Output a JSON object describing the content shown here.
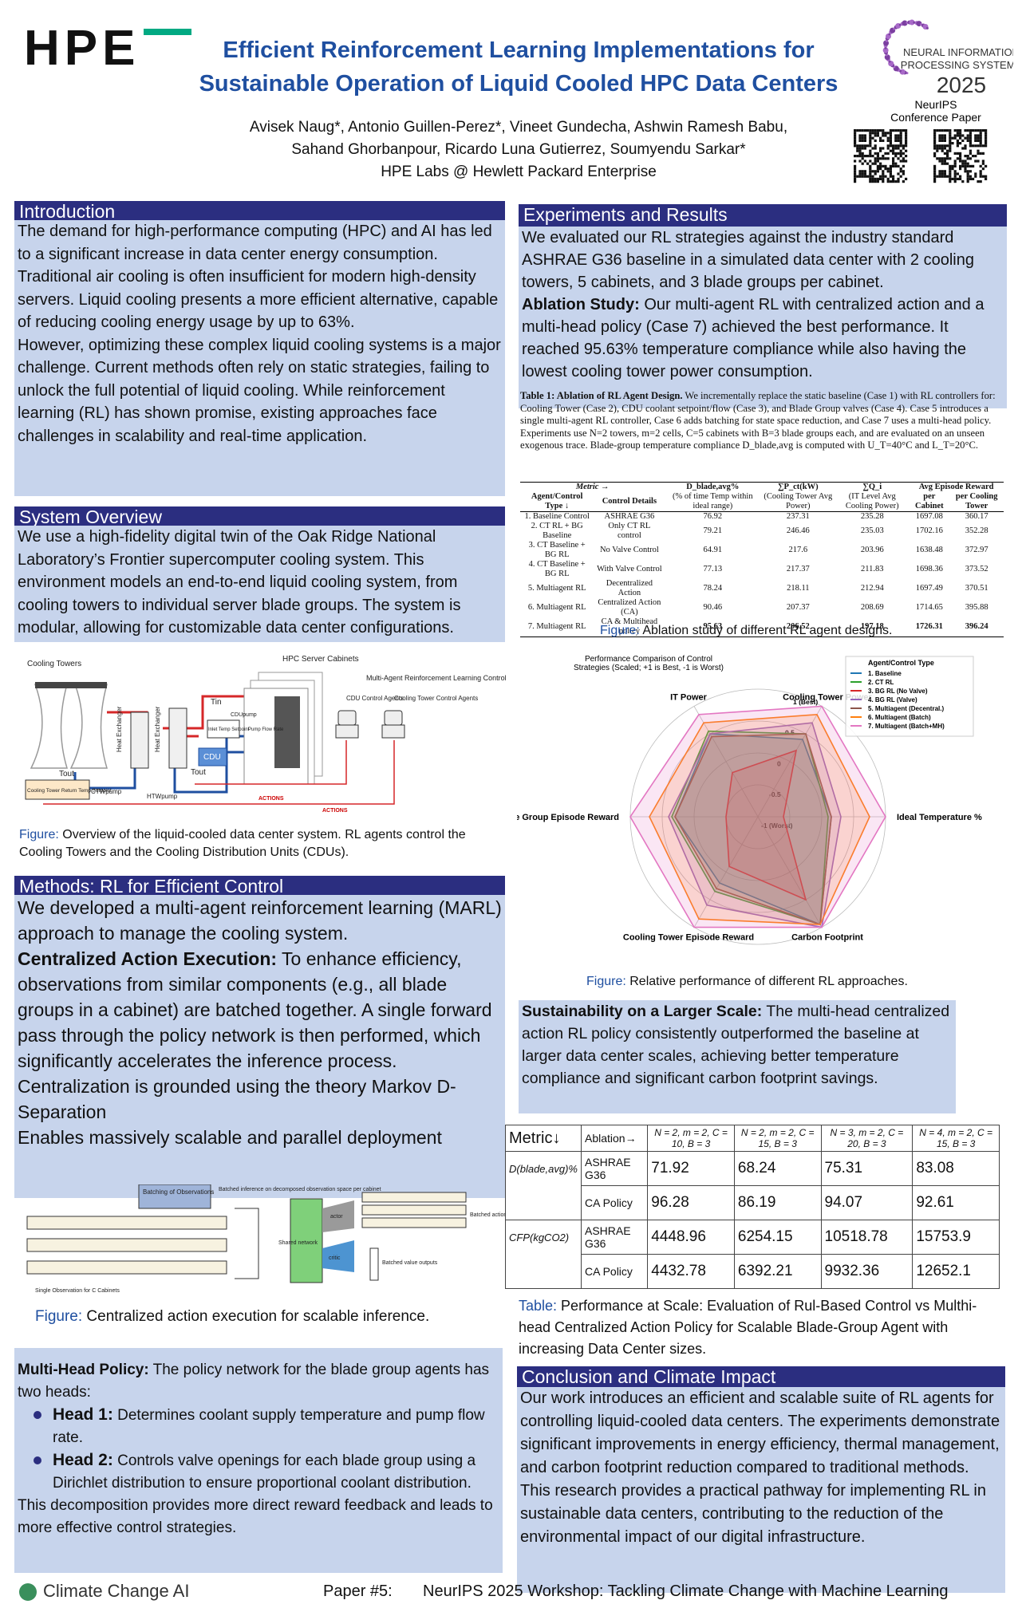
{
  "header": {
    "logo": "HPE",
    "title_lines": [
      "Efficient Reinforcement Learning Implementations for",
      "Sustainable Operation of Liquid Cooled HPC Data Centers"
    ],
    "author_lines": [
      "Avisek Naug*, Antonio Guillen-Perez*, Vineet Gundecha, Ashwin Ramesh Babu,",
      "Sahand Ghorbanpour, Ricardo Luna Gutierrez, Soumyendu Sarkar*",
      "HPE Labs @ Hewlett Packard Enterprise"
    ],
    "conference_logo": [
      "NEURAL INFORMATION",
      "PROCESSING SYSTEMS",
      "2025"
    ],
    "qr_label": [
      "NeurIPS",
      "Conference Paper"
    ]
  },
  "introduction": {
    "heading": "Introduction",
    "paragraphs": [
      "The demand for high-performance computing (HPC) and AI has led to a significant increase in data center energy consumption. Traditional air cooling is often insufficient for modern high-density servers. Liquid cooling presents a more efficient alternative, capable of reducing cooling energy usage by up to 63%.",
      "However, optimizing these complex liquid cooling systems is a major challenge. Current methods often rely on static strategies, failing to unlock the full potential of liquid cooling. While reinforcement learning (RL) has shown promise, existing approaches face challenges in scalability and real-time application."
    ]
  },
  "system_overview": {
    "heading": "System Overview",
    "paragraphs": [
      "We use a high-fidelity digital twin of the Oak Ridge National Laboratory’s Frontier supercomputer cooling system. This environment models an end-to-end liquid cooling system, from cooling towers to individual server blade groups. The system is modular, allowing for customizable data center configurations."
    ],
    "figure_labels": [
      "Cooling Towers",
      "HPC Server Cabinets",
      "Multi-Agent Reinforcement Learning Control",
      "CDU Control Agents",
      "Cooling Tower Control Agents",
      "Heat Exchanger",
      "Heat Exchanger",
      "CDU",
      "Inlet Temp Setpoint",
      "Pump Flow Rate",
      "Cooling Tower Return Temp Setpoint",
      "ACTIONS",
      "ACTIONS",
      "Tout",
      "Tin",
      "Tout",
      "CTWpump",
      "HTWpump",
      "CDUpump"
    ],
    "caption": {
      "label": "Figure:",
      "text": " Overview of the liquid-cooled data center system. RL agents control the Cooling Towers and the Cooling Distribution Units (CDUs)."
    }
  },
  "methods": {
    "heading": "Methods: RL for Efficient Control",
    "paragraphs": [
      "We developed a multi-agent reinforcement learning (MARL) approach to manage the cooling system.",
      {
        "lead": "Centralized Action Execution:",
        "text": " To enhance efficiency, observations from similar components (e.g., all blade groups in a cabinet) are batched together. A single forward pass through the policy network is then performed, which significantly accelerates the inference process."
      },
      "Centralization is grounded using the theory Markov D-Separation",
      "Enables massively scalable and parallel deployment"
    ],
    "figure_labels": [
      "Batching of Observations",
      "Batched inference on decomposed observation space per cabinet",
      "Shared network",
      "actor",
      "critic",
      "Batched action outputs",
      "Batched value outputs",
      "Single Observation for C Cabinets"
    ],
    "caption": {
      "label": "Figure:",
      "text": " Centralized action execution for scalable inference."
    }
  },
  "multi_head": {
    "intro": {
      "lead": "Multi-Head Policy:",
      "text": " The policy network for the blade group agents has two heads:"
    },
    "bullets": [
      {
        "lead": "Head 1:",
        "text": " Determines coolant supply temperature and pump flow rate."
      },
      {
        "lead": "Head 2:",
        "text": " Controls valve openings for each blade group using a Dirichlet distribution to ensure proportional coolant distribution."
      }
    ],
    "closing": "This decomposition provides more direct reward feedback and leads to more effective control strategies."
  },
  "experiments": {
    "heading": "Experiments and Results",
    "paragraphs": [
      "We evaluated our RL strategies against the industry standard ASHRAE G36 baseline in a simulated data center with 2 cooling towers, 5 cabinets, and 3 blade groups per cabinet.",
      {
        "lead": "Ablation Study:",
        "text": " Our multi-agent RL with centralized action and a multi-head policy (Case 7) achieved the best performance. It reached 95.63% temperature compliance while also having the lowest cooling tower power consumption."
      }
    ]
  },
  "ablation_table": {
    "caption": {
      "lead": "Table 1: Ablation of RL Agent Design.",
      "text": " We incrementally replace the static baseline (Case 1) with RL controllers for: Cooling Tower (Case 2), CDU coolant setpoint/flow (Case 3), and Blade Group valves (Case 4). Case 5 introduces a single multi-agent RL controller, Case 6 adds batching for state space reduction, and Case 7 uses a multi-head policy. Experiments use N=2 towers, m=2 cells, C=5 cabinets with B=3 blade groups each, and are evaluated on an unseen exogenous trace. Blade-group temperature compliance D_blade,avg is computed with U_T=40°C and L_T=20°C."
    },
    "header_top": [
      "Metric →",
      "D_blade,avg%",
      "∑P_ct(kW)",
      "∑Q_i",
      "Avg Episode Reward"
    ],
    "header_bottom": [
      "Agent/Control Type ↓",
      "Control Details",
      "(% of time Temp within ideal range)",
      "(Cooling Tower Avg Power)",
      "(IT Level Avg Cooling Power)",
      "per Cabinet",
      "per Cooling Tower"
    ],
    "rows": [
      [
        "1. Baseline Control",
        "ASHRAE G36",
        "76.92",
        "237.31",
        "235.28",
        "1697.08",
        "360.17"
      ],
      [
        "2. CT RL + BG Baseline",
        "Only CT RL control",
        "79.21",
        "246.46",
        "235.03",
        "1702.16",
        "352.28"
      ],
      [
        "3. CT Baseline + BG RL",
        "No Valve Control",
        "64.91",
        "217.6",
        "203.96",
        "1638.48",
        "372.97"
      ],
      [
        "4. CT Baseline + BG RL",
        "With Valve Control",
        "77.13",
        "217.37",
        "211.83",
        "1698.36",
        "373.52"
      ],
      [
        "5. Multiagent RL",
        "Decentralized Action",
        "78.24",
        "218.11",
        "212.94",
        "1697.49",
        "370.51"
      ],
      [
        "6. Multiagent RL",
        "Centralized Action (CA)",
        "90.46",
        "207.37",
        "208.69",
        "1714.65",
        "395.88"
      ],
      [
        "7. Multiagent RL",
        "CA & Multihead policy",
        "95.63",
        "206.52",
        "197.18",
        "1726.31",
        "396.24"
      ]
    ],
    "figure_caption": {
      "label": "Figure:",
      "text": " Ablation study of different RL agent designs."
    }
  },
  "chart_data": {
    "type": "radar",
    "title": [
      "Performance Comparison of Control",
      "Strategies (Scaled; +1 is Best, -1 is Worst)"
    ],
    "categories": [
      "IT Power",
      "Cooling Tower Power",
      "Ideal Temperature %",
      "Carbon Footprint",
      "Cooling Tower Episode Reward",
      "Blade Group Episode Reward"
    ],
    "ylim": [
      -1,
      1
    ],
    "yticks": [
      {
        "value": -1,
        "label": "-1 (Worst)"
      },
      -0.5,
      0,
      0.5,
      {
        "value": 1,
        "label": "1 (Best)"
      }
    ],
    "legend_title": "Agent/Control Type",
    "series": [
      {
        "name": "1. Baseline",
        "color": "#1f77b4",
        "values": [
          0.5,
          0.4,
          0.15,
          0.95,
          0.2,
          0.3
        ]
      },
      {
        "name": "2. CT RL",
        "color": "#2ca02c",
        "values": [
          0.55,
          0.5,
          0.1,
          0.95,
          0.35,
          0.35
        ]
      },
      {
        "name": "3. BG RL (No Valve)",
        "color": "#d62728",
        "values": [
          -0.2,
          0.2,
          -0.6,
          0.5,
          -0.1,
          -0.5
        ]
      },
      {
        "name": "4. BG RL (Valve)",
        "color": "#9467bd",
        "values": [
          0.5,
          0.7,
          0.3,
          1,
          0.6,
          0.4
        ]
      },
      {
        "name": "5. Multiagent (Decentral.)",
        "color": "#8c564b",
        "values": [
          0.45,
          0.5,
          0.15,
          0.95,
          0.3,
          0.3
        ]
      },
      {
        "name": "6. Multiagent (Batch)",
        "color": "#ff7f0e",
        "values": [
          0.7,
          0.85,
          0.75,
          0.95,
          0.85,
          0.7
        ]
      },
      {
        "name": "7. Multiagent (Batch+MH)",
        "color": "#e377c2",
        "values": [
          0.85,
          1,
          1,
          1,
          1,
          1
        ]
      }
    ],
    "caption": {
      "label": "Figure:",
      "text": " Relative performance of different RL approaches."
    }
  },
  "sustainability": {
    "lead": "Sustainability on a Larger Scale:",
    "text": " The multi-head centralized action RL policy consistently outperformed the baseline at larger data center scales, achieving better temperature compliance and significant carbon footprint savings."
  },
  "scale_table": {
    "header": [
      "Metric↓",
      "Ablation→",
      "N = 2, m = 2, C = 10, B = 3",
      "N = 2, m = 2, C = 15, B = 3",
      "N = 3, m = 2, C = 20, B = 3",
      "N = 4, m = 2, C = 15, B = 3"
    ],
    "groups": [
      {
        "metric": "D(blade,avg)%",
        "rows": [
          [
            "ASHRAE G36",
            "71.92",
            "68.24",
            "75.31",
            "83.08"
          ],
          [
            "CA Policy",
            "96.28",
            "86.19",
            "94.07",
            "92.61"
          ]
        ]
      },
      {
        "metric": "CFP(kgCO2)",
        "rows": [
          [
            "ASHRAE G36",
            "4448.96",
            "6254.15",
            "10518.78",
            "15753.9"
          ],
          [
            "CA Policy",
            "4432.78",
            "6392.21",
            "9932.36",
            "12652.1"
          ]
        ]
      }
    ],
    "caption": {
      "label": "Table:",
      "text": " Performance at Scale: Evaluation of Rul-Based Control vs Multhi-head Centralized Action Policy for Scalable Blade-Group Agent with increasing Data Center sizes."
    }
  },
  "conclusion": {
    "heading": "Conclusion and Climate Impact",
    "paragraphs": [
      "Our work introduces an efficient and scalable suite of RL agents for controlling liquid-cooled data centers. The experiments demonstrate significant improvements in energy efficiency, thermal management, and carbon footprint reduction compared to traditional methods.",
      "This research provides a practical pathway for implementing RL in sustainable data centers, contributing to the reduction of the environmental impact of our digital infrastructure."
    ]
  },
  "footer": {
    "org": "Climate Change AI",
    "paper": "Paper #5:",
    "workshop": "NeurIPS 2025 Workshop: Tackling Climate Change with Machine Learning"
  }
}
